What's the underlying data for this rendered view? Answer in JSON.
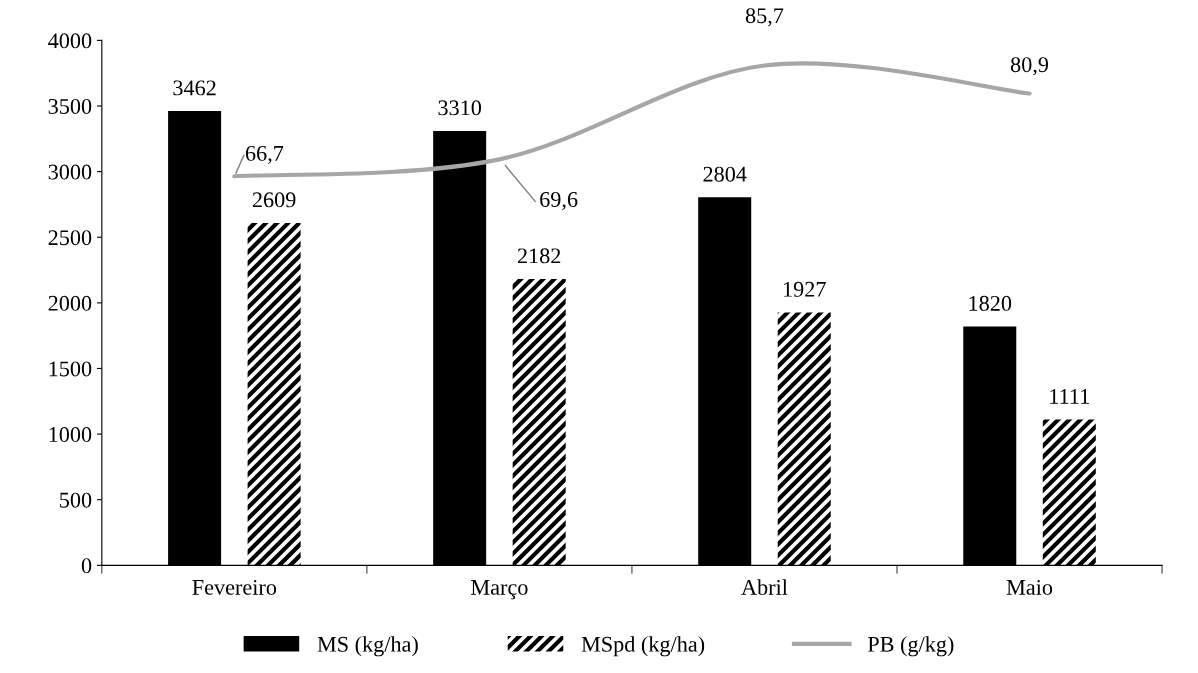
{
  "chart_data": {
    "type": "bar",
    "categories": [
      "Fevereiro",
      "Março",
      "Abril",
      "Maio"
    ],
    "series": [
      {
        "name": "MS (kg/ha)",
        "color": "#000000",
        "values": [
          3462,
          3310,
          2804,
          1820
        ]
      },
      {
        "name": "MSpd (kg/ha)",
        "color": "#000000",
        "values": [
          2609,
          2182,
          1927,
          1111
        ]
      },
      {
        "name": "PB (g/kg)",
        "type": "line",
        "axis": "y2",
        "color": "#a6a6a6",
        "value_labels": [
          "66,7",
          "69,6",
          "85,7",
          "80,9"
        ],
        "values": [
          66.7,
          69.6,
          85.7,
          80.9
        ]
      }
    ],
    "ylim": [
      0,
      4000
    ],
    "yticks": [
      0,
      500,
      1000,
      1500,
      2000,
      2500,
      3000,
      3500,
      4000
    ],
    "y2lim": [
      0,
      90
    ],
    "data_labels": true,
    "legend": "bottom",
    "grid": false,
    "marker": "none",
    "line_style": "solid"
  }
}
